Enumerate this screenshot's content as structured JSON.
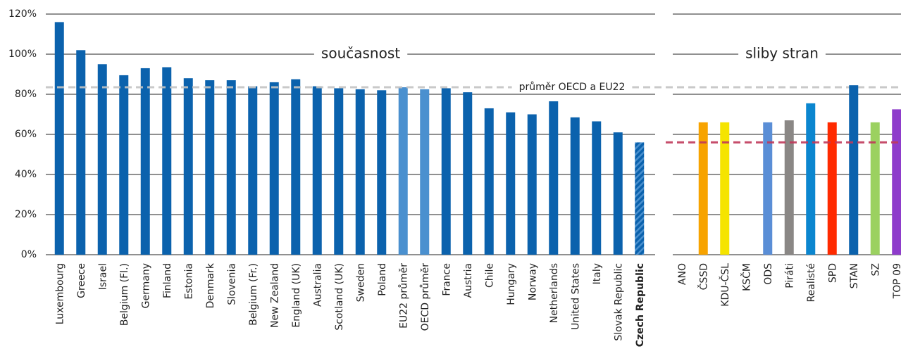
{
  "chart_data": [
    {
      "type": "bar",
      "title": "současnost",
      "categories": [
        "Luxembourg",
        "Greece",
        "Israel",
        "Belgium (Fl.)",
        "Germany",
        "Finland",
        "Estonia",
        "Denmark",
        "Slovenia",
        "Belgium (Fr.)",
        "New Zealand",
        "England (UK)",
        "Australia",
        "Scotland (UK)",
        "Sweden",
        "Poland",
        "EU22 průměr",
        "OECD průměr",
        "France",
        "Austria",
        "Chile",
        "Hungary",
        "Norway",
        "Netherlands",
        "United States",
        "Italy",
        "Slovak Republic",
        "Czech Republic"
      ],
      "values": [
        116,
        102,
        95,
        89.5,
        93,
        93.5,
        88,
        87,
        87,
        84,
        86,
        87.5,
        84,
        83,
        82.5,
        82,
        83.5,
        82.5,
        83,
        81,
        73,
        71,
        70,
        76.5,
        68.5,
        66.5,
        61,
        56
      ],
      "colors": [
        "#0b62ad",
        "#0b62ad",
        "#0b62ad",
        "#0b62ad",
        "#0b62ad",
        "#0b62ad",
        "#0b62ad",
        "#0b62ad",
        "#0b62ad",
        "#0b62ad",
        "#0b62ad",
        "#0b62ad",
        "#0b62ad",
        "#0b62ad",
        "#0b62ad",
        "#0b62ad",
        "#4a90cf",
        "#4a90cf",
        "#0b62ad",
        "#0b62ad",
        "#0b62ad",
        "#0b62ad",
        "#0b62ad",
        "#0b62ad",
        "#0b62ad",
        "#0b62ad",
        "#0b62ad",
        "#0b62ad"
      ],
      "highlight_index": 27,
      "ylim": [
        0,
        120
      ],
      "yticks": [
        {
          "value": 0,
          "label": "0%"
        },
        {
          "value": 20,
          "label": "20%"
        },
        {
          "value": 40,
          "label": "40%"
        },
        {
          "value": 60,
          "label": "60%"
        },
        {
          "value": 80,
          "label": "80%"
        },
        {
          "value": 100,
          "label": "100%"
        },
        {
          "value": 120,
          "label": "120%"
        }
      ],
      "grid": true,
      "reference_line": {
        "value": 83.5,
        "label": "průměr OECD a EU22",
        "color": "#c4c4c4"
      }
    },
    {
      "type": "bar",
      "title": "sliby stran",
      "categories": [
        "ANO",
        "ČSSD",
        "KDU-ČSL",
        "KSČM",
        "ODS",
        "Piráti",
        "Realisté",
        "SPD",
        "STAN",
        "SZ",
        "TOP 09"
      ],
      "values": [
        null,
        66,
        66,
        null,
        66,
        67,
        75.5,
        66,
        84.5,
        66,
        72.5
      ],
      "colors": [
        null,
        "#f7a300",
        "#f5e400",
        null,
        "#5a8ed6",
        "#8a8785",
        "#0b86cf",
        "#ff2a00",
        "#0b62ad",
        "#9bd160",
        "#8e3ccb"
      ],
      "ylim": [
        0,
        120
      ],
      "yticks": [
        0,
        20,
        40,
        60,
        80,
        100,
        120
      ],
      "grid": true,
      "reference_line": {
        "value": 56,
        "color": "#c0395a"
      }
    }
  ]
}
